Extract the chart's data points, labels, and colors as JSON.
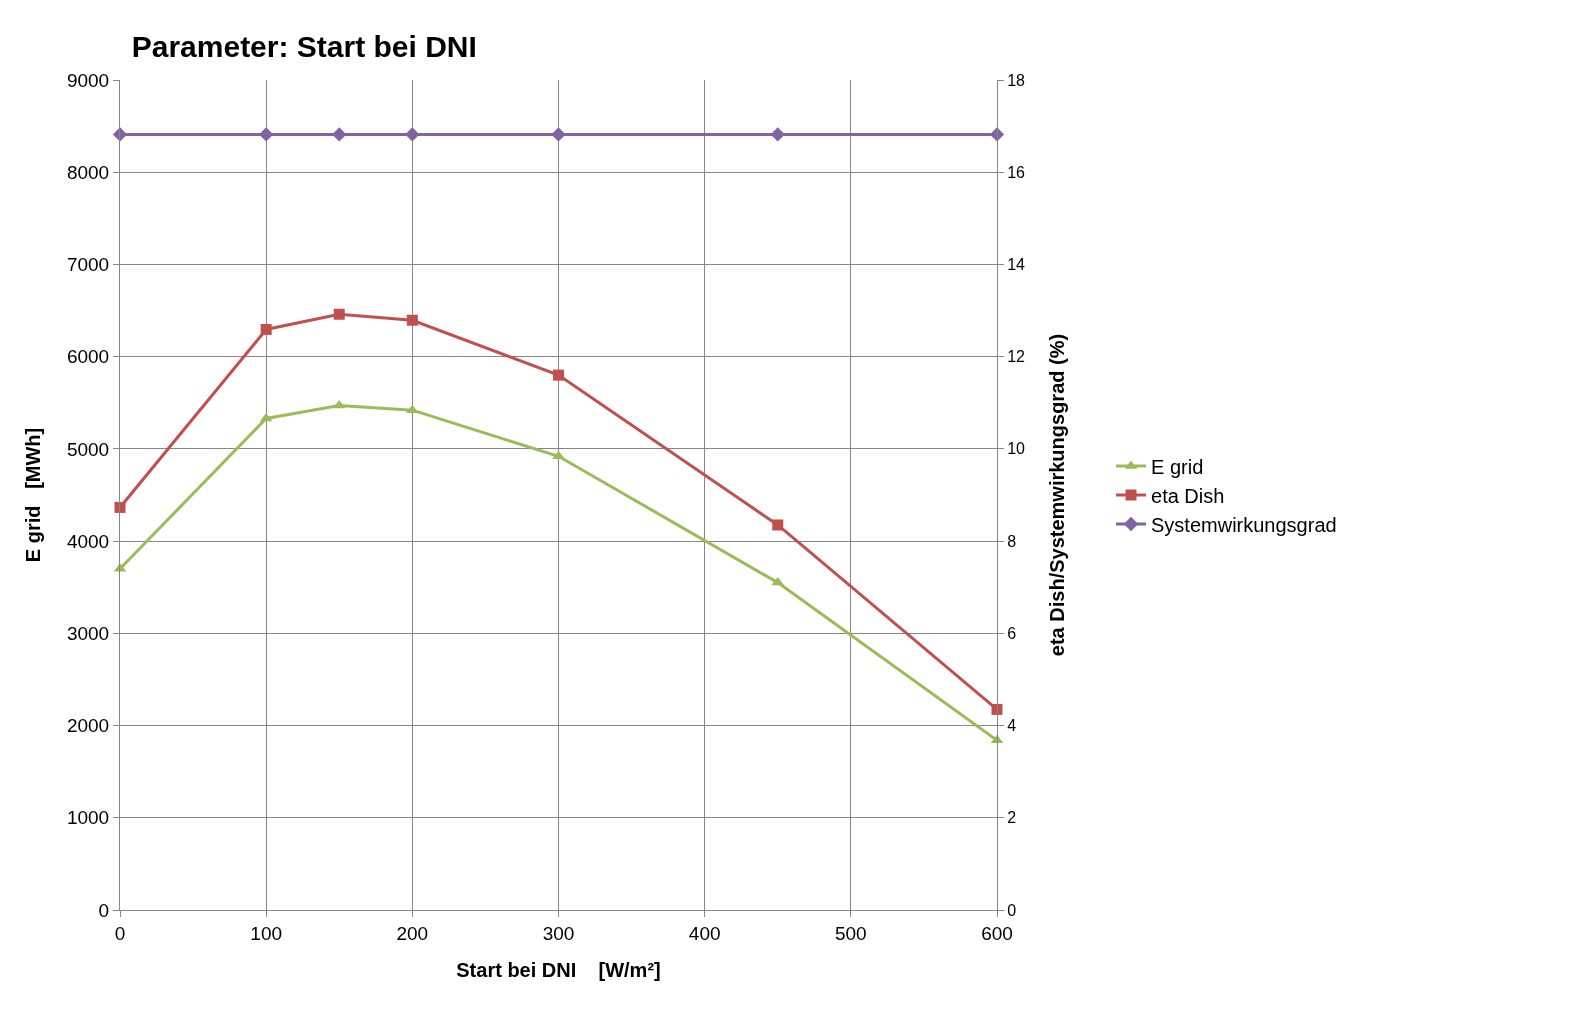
{
  "chart_data": {
    "type": "line",
    "title": "Parameter: Start bei DNI",
    "xlabel": "Start bei DNI    [W/m²]",
    "ylabel": "E grid   [MWh]",
    "y2label": "eta Dish/Systemwirkungsgrad (%)",
    "x": [
      0,
      100,
      150,
      200,
      300,
      450,
      600
    ],
    "series": [
      {
        "name": "E grid",
        "color": "#9bbb59",
        "marker": "triangle",
        "values": [
          3700,
          5330,
          5470,
          5420,
          4920,
          3550,
          1840
        ]
      },
      {
        "name": "eta Dish",
        "color": "#c0504d",
        "marker": "square",
        "axis": "y2",
        "values": [
          8.73,
          12.59,
          12.92,
          12.79,
          11.6,
          8.35,
          4.35
        ]
      },
      {
        "name": "Systemwirkungsgrad",
        "color": "#8064a2",
        "marker": "diamond",
        "axis": "y2",
        "values": [
          16.82,
          16.82,
          16.82,
          16.82,
          16.82,
          16.82,
          16.82
        ]
      }
    ],
    "xlim": [
      0,
      600
    ],
    "xticks": [
      0,
      100,
      200,
      300,
      400,
      500,
      600
    ],
    "ylim": [
      0,
      9000
    ],
    "yticks": [
      0,
      1000,
      2000,
      3000,
      4000,
      5000,
      6000,
      7000,
      8000,
      9000
    ],
    "y2lim": [
      0,
      18
    ],
    "y2ticks": [
      0,
      2,
      4,
      6,
      8,
      10,
      12,
      14,
      16,
      18
    ],
    "grid": true,
    "legend": "right",
    "line_style": "solid"
  }
}
